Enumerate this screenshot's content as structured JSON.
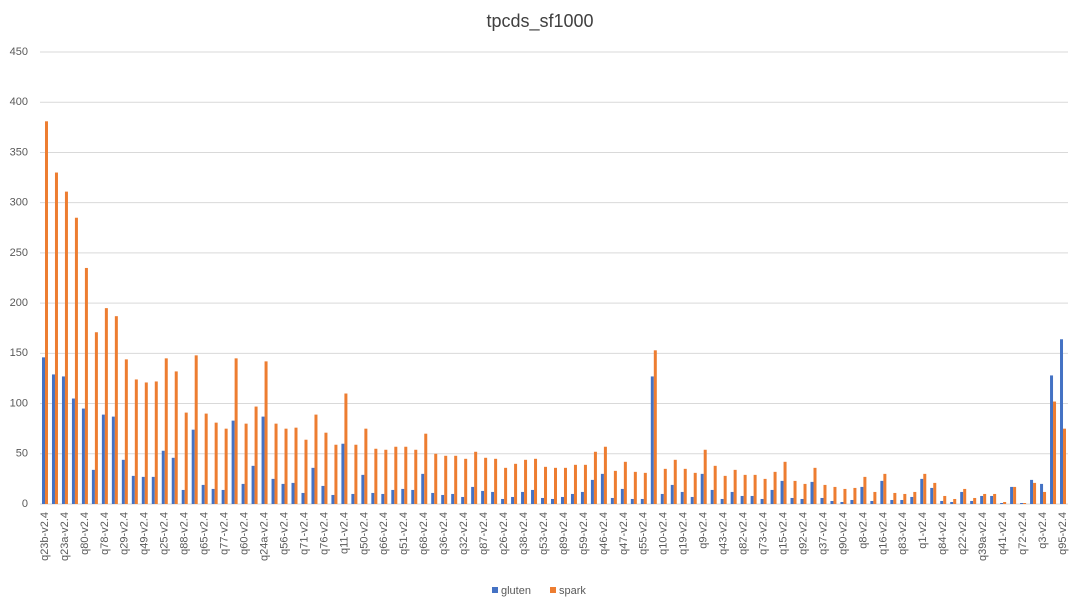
{
  "chart_data": {
    "type": "bar",
    "title": "tpcds_sf1000",
    "categories": [
      "q23b-v2.4",
      null,
      "q23a-v2.4",
      null,
      "q80-v2.4",
      null,
      "q78-v2.4",
      null,
      "q29-v2.4",
      null,
      "q49-v2.4",
      null,
      "q25-v2.4",
      null,
      "q88-v2.4",
      null,
      "q65-v2.4",
      null,
      "q77-v2.4",
      null,
      "q60-v2.4",
      null,
      "q24a-v2.4",
      null,
      "q56-v2.4",
      null,
      "q71-v2.4",
      null,
      "q76-v2.4",
      null,
      "q11-v2.4",
      null,
      "q50-v2.4",
      null,
      "q66-v2.4",
      null,
      "q51-v2.4",
      null,
      "q68-v2.4",
      null,
      "q36-v2.4",
      null,
      "q32-v2.4",
      null,
      "q87-v2.4",
      null,
      "q26-v2.4",
      null,
      "q38-v2.4",
      null,
      "q53-v2.4",
      null,
      "q89-v2.4",
      null,
      "q59-v2.4",
      null,
      "q46-v2.4",
      null,
      "q47-v2.4",
      null,
      "q55-v2.4",
      null,
      "q10-v2.4",
      null,
      "q19-v2.4",
      null,
      "q9-v2.4",
      null,
      "q43-v2.4",
      null,
      "q82-v2.4",
      null,
      "q73-v2.4",
      null,
      "q15-v2.4",
      null,
      "q92-v2.4",
      null,
      "q37-v2.4",
      null,
      "q90-v2.4",
      null,
      "q8-v2.4",
      null,
      "q16-v2.4",
      null,
      "q83-v2.4",
      null,
      "q1-v2.4",
      null,
      "q84-v2.4",
      null,
      "q22-v2.4",
      null,
      "q39a-v2.4",
      null,
      "q41-v2.4",
      null,
      "q72-v2.4",
      null,
      "q3-v2.4",
      null,
      "q95-v2.4"
    ],
    "series": [
      {
        "name": "gluten",
        "color": "#4472c4",
        "values": [
          146,
          129,
          127,
          105,
          95,
          34,
          89,
          87,
          44,
          28,
          27,
          27,
          53,
          46,
          14,
          74,
          19,
          15,
          14,
          83,
          20,
          38,
          87,
          25,
          20,
          21,
          11,
          36,
          18,
          9,
          60,
          10,
          29,
          11,
          10,
          14,
          15,
          14,
          30,
          11,
          9,
          10,
          7,
          17,
          13,
          12,
          5,
          7,
          12,
          14,
          6,
          5,
          7,
          10,
          12,
          24,
          30,
          6,
          15,
          5,
          5,
          127,
          10,
          19,
          12,
          7,
          30,
          14,
          5,
          12,
          8,
          8,
          5,
          14,
          23,
          6,
          5,
          22,
          6,
          3,
          2,
          4,
          17,
          3,
          23,
          4,
          4,
          7,
          25,
          16,
          3,
          2,
          12,
          3,
          8,
          8,
          1,
          17,
          1,
          24,
          20,
          128,
          164
        ]
      },
      {
        "name": "spark",
        "color": "#ed7d31",
        "values": [
          381,
          330,
          311,
          285,
          235,
          171,
          195,
          187,
          144,
          124,
          121,
          122,
          145,
          132,
          91,
          148,
          90,
          81,
          75,
          145,
          80,
          97,
          142,
          80,
          75,
          76,
          64,
          89,
          71,
          59,
          110,
          59,
          75,
          55,
          54,
          57,
          57,
          54,
          70,
          50,
          48,
          48,
          45,
          52,
          46,
          45,
          36,
          40,
          44,
          45,
          37,
          36,
          36,
          39,
          39,
          52,
          57,
          33,
          42,
          32,
          31,
          153,
          35,
          44,
          35,
          31,
          54,
          38,
          28,
          34,
          29,
          29,
          25,
          32,
          42,
          23,
          20,
          36,
          19,
          17,
          15,
          16,
          27,
          12,
          30,
          11,
          10,
          12,
          30,
          21,
          8,
          5,
          15,
          6,
          10,
          10,
          2,
          17,
          1,
          21,
          12,
          102,
          75
        ]
      }
    ],
    "ylim": [
      0,
      450
    ],
    "yticks": [
      0,
      50,
      100,
      150,
      200,
      250,
      300,
      350,
      400,
      450
    ],
    "grid": true
  }
}
